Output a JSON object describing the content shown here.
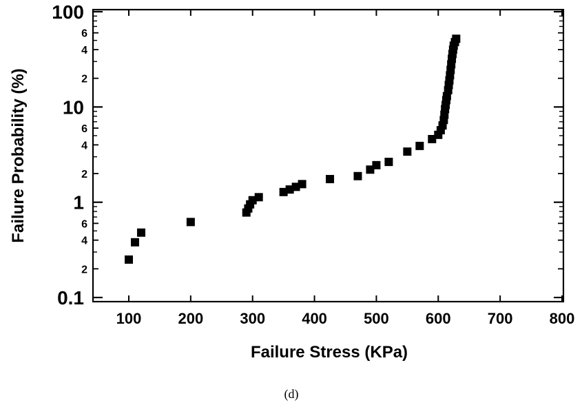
{
  "chart_data": {
    "type": "scatter",
    "xlabel": "Failure Stress (KPa)",
    "ylabel": "Failure Probability (%)",
    "caption": "(d)",
    "xlim": [
      40,
      810
    ],
    "ylim": [
      0.08,
      100
    ],
    "yscale": "log",
    "x_ticks": [
      100,
      200,
      300,
      400,
      500,
      600,
      700,
      800
    ],
    "y_major_ticks": [
      {
        "value": 0.1,
        "label": "0.1"
      },
      {
        "value": 1,
        "label": "1"
      },
      {
        "value": 10,
        "label": "10"
      },
      {
        "value": 100,
        "label": "100"
      }
    ],
    "y_minor_ticks": [
      {
        "value": 0.2,
        "label": "2"
      },
      {
        "value": 0.4,
        "label": "4"
      },
      {
        "value": 0.6,
        "label": "6"
      },
      {
        "value": 2,
        "label": "2"
      },
      {
        "value": 4,
        "label": "4"
      },
      {
        "value": 6,
        "label": "6"
      },
      {
        "value": 20,
        "label": "2"
      },
      {
        "value": 40,
        "label": "4"
      },
      {
        "value": 60,
        "label": "6"
      }
    ],
    "grid": false,
    "marker": "square",
    "marker_color": "#000000",
    "points": [
      {
        "x": 100,
        "y": 0.25
      },
      {
        "x": 110,
        "y": 0.38
      },
      {
        "x": 120,
        "y": 0.48
      },
      {
        "x": 200,
        "y": 0.62
      },
      {
        "x": 290,
        "y": 0.78
      },
      {
        "x": 293,
        "y": 0.86
      },
      {
        "x": 296,
        "y": 0.95
      },
      {
        "x": 300,
        "y": 1.05
      },
      {
        "x": 310,
        "y": 1.13
      },
      {
        "x": 350,
        "y": 1.28
      },
      {
        "x": 360,
        "y": 1.36
      },
      {
        "x": 370,
        "y": 1.45
      },
      {
        "x": 380,
        "y": 1.55
      },
      {
        "x": 425,
        "y": 1.75
      },
      {
        "x": 470,
        "y": 1.88
      },
      {
        "x": 490,
        "y": 2.2
      },
      {
        "x": 500,
        "y": 2.45
      },
      {
        "x": 520,
        "y": 2.65
      },
      {
        "x": 550,
        "y": 3.4
      },
      {
        "x": 570,
        "y": 3.9
      },
      {
        "x": 590,
        "y": 4.6
      },
      {
        "x": 600,
        "y": 5.1
      },
      {
        "x": 604,
        "y": 5.7
      },
      {
        "x": 607,
        "y": 6.4
      },
      {
        "x": 609,
        "y": 7.3
      },
      {
        "x": 610,
        "y": 8.3
      },
      {
        "x": 611,
        "y": 9.5
      },
      {
        "x": 612,
        "y": 10.5
      },
      {
        "x": 613,
        "y": 11.8
      },
      {
        "x": 614,
        "y": 13
      },
      {
        "x": 616,
        "y": 15
      },
      {
        "x": 617,
        "y": 17
      },
      {
        "x": 618,
        "y": 19
      },
      {
        "x": 619,
        "y": 21.5
      },
      {
        "x": 620,
        "y": 24.5
      },
      {
        "x": 621,
        "y": 28
      },
      {
        "x": 622,
        "y": 32
      },
      {
        "x": 623,
        "y": 36
      },
      {
        "x": 624,
        "y": 40
      },
      {
        "x": 625,
        "y": 44
      },
      {
        "x": 627,
        "y": 48
      },
      {
        "x": 629,
        "y": 52
      }
    ]
  }
}
